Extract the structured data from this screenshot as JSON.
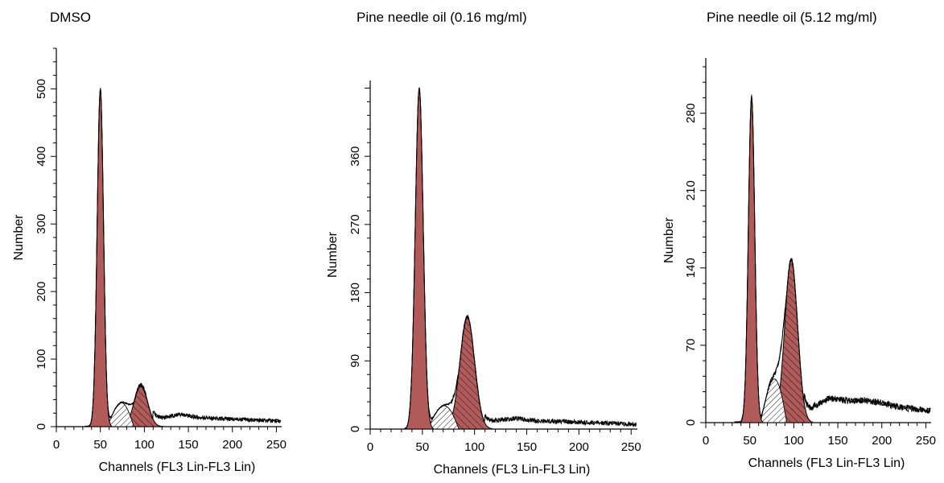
{
  "chart_data": [
    {
      "type": "area",
      "title": "DMSO",
      "xlabel": "Channels (FL3 Lin-FL3 Lin)",
      "ylabel": "Number",
      "xlim": [
        0,
        256
      ],
      "ylim": [
        0,
        560
      ],
      "xticks": [
        0,
        50,
        100,
        150,
        200,
        250
      ],
      "yticks": [
        0,
        100,
        200,
        300,
        400,
        500
      ],
      "peaks": {
        "g0g1": {
          "center": 50,
          "height": 500,
          "sigma": 3.6
        },
        "s_phase": {
          "start": 58,
          "end": 88,
          "height": 40
        },
        "g2m": {
          "center": 96,
          "height": 62,
          "sigma": 7.5
        }
      },
      "tail": [
        {
          "x": 110,
          "y": 12
        },
        {
          "x": 125,
          "y": 14
        },
        {
          "x": 140,
          "y": 18
        },
        {
          "x": 160,
          "y": 14
        },
        {
          "x": 180,
          "y": 12
        },
        {
          "x": 200,
          "y": 11
        },
        {
          "x": 220,
          "y": 10
        },
        {
          "x": 240,
          "y": 9
        },
        {
          "x": 255,
          "y": 8
        }
      ]
    },
    {
      "type": "area",
      "title": "Pine needle oil (0.16 mg/ml)",
      "xlabel": "Channels (FL3 Lin-FL3 Lin)",
      "ylabel": "Number",
      "xlim": [
        0,
        256
      ],
      "ylim": [
        0,
        460
      ],
      "xticks": [
        0,
        50,
        100,
        150,
        200,
        250
      ],
      "yticks": [
        0,
        90,
        180,
        270,
        360
      ],
      "peaks": {
        "g0g1": {
          "center": 47,
          "height": 450,
          "sigma": 3.8
        },
        "s_phase": {
          "start": 55,
          "end": 85,
          "height": 35
        },
        "g2m": {
          "center": 93,
          "height": 148,
          "sigma": 7
        }
      },
      "tail": [
        {
          "x": 110,
          "y": 10
        },
        {
          "x": 125,
          "y": 12
        },
        {
          "x": 140,
          "y": 14
        },
        {
          "x": 160,
          "y": 11
        },
        {
          "x": 180,
          "y": 10
        },
        {
          "x": 200,
          "y": 9
        },
        {
          "x": 220,
          "y": 8
        },
        {
          "x": 240,
          "y": 7
        },
        {
          "x": 255,
          "y": 6
        }
      ]
    },
    {
      "type": "area",
      "title": "Pine needle oil (5.12 mg/ml)",
      "xlabel": "Channels (FL3 Lin-FL3 Lin)",
      "ylabel": "Number",
      "xlim": [
        0,
        256
      ],
      "ylim": [
        0,
        330
      ],
      "xticks": [
        0,
        50,
        100,
        150,
        200,
        250
      ],
      "yticks": [
        0,
        70,
        140,
        210,
        280
      ],
      "peaks": {
        "g0g1": {
          "center": 52,
          "height": 295,
          "sigma": 3.6
        },
        "s_phase": {
          "start": 62,
          "end": 92,
          "height": 45
        },
        "g2m": {
          "center": 97,
          "height": 148,
          "sigma": 7.2
        }
      },
      "tail": [
        {
          "x": 112,
          "y": 8
        },
        {
          "x": 125,
          "y": 16
        },
        {
          "x": 140,
          "y": 22
        },
        {
          "x": 160,
          "y": 20
        },
        {
          "x": 180,
          "y": 20
        },
        {
          "x": 200,
          "y": 18
        },
        {
          "x": 220,
          "y": 14
        },
        {
          "x": 240,
          "y": 12
        },
        {
          "x": 255,
          "y": 11
        }
      ]
    }
  ]
}
